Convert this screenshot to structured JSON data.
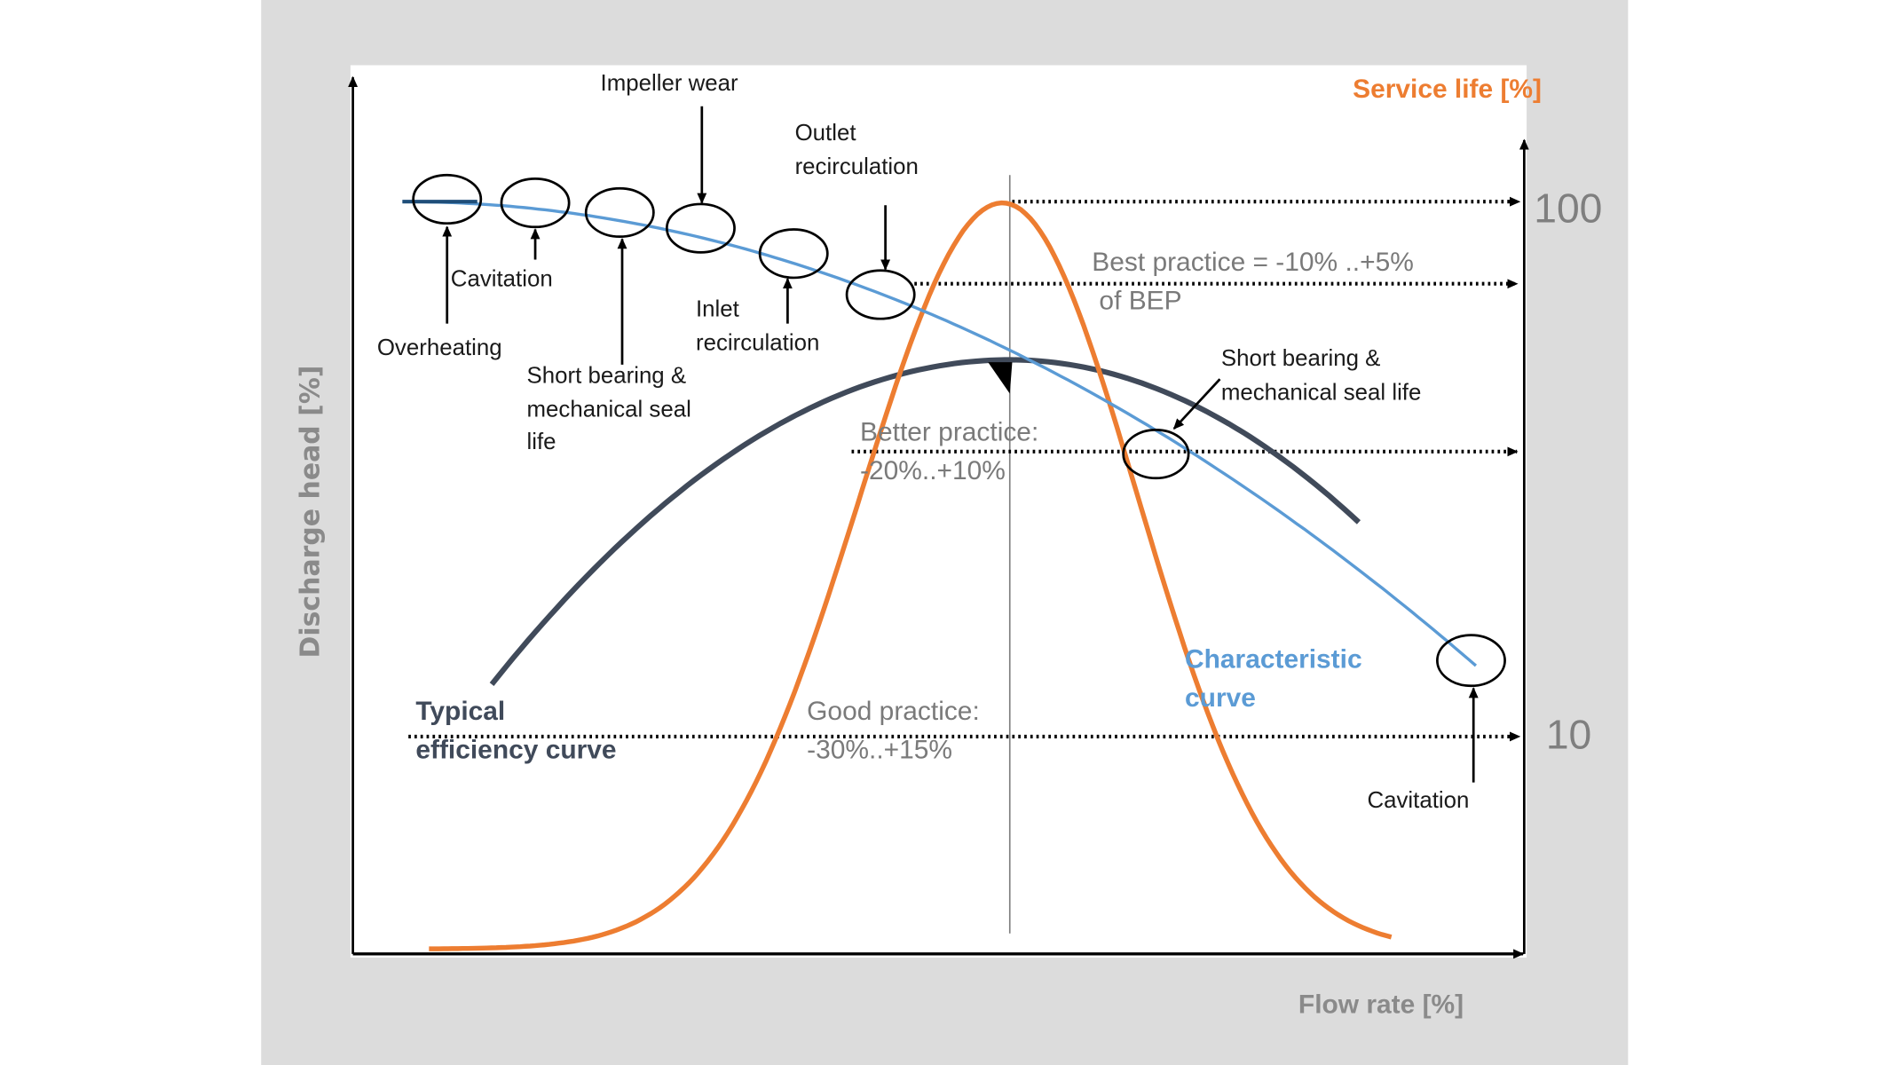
{
  "colors": {
    "service_life": "#ed7d31",
    "characteristic": "#5b9bd5",
    "efficiency": "#404a5a",
    "background": "#dcdcdc"
  },
  "axes": {
    "y_left_title": "Discharge head [%]",
    "x_title": "Flow rate [%]",
    "y_right_title": "Service life [%]",
    "y_right_ticks": [
      "100",
      "10"
    ]
  },
  "curves": {
    "efficiency_label": [
      "Typical",
      "efficiency curve"
    ],
    "characteristic_label": [
      "Characteristic",
      "curve"
    ]
  },
  "practice_bands": {
    "best": [
      "Best practice = -10% ..+5%",
      "of BEP"
    ],
    "better": [
      "Better practice:",
      "-20%..+10%"
    ],
    "good": [
      "Good practice:",
      "-30%..+15%"
    ]
  },
  "annotations": {
    "overheating": "Overheating",
    "cavitation_left": "Cavitation",
    "short_bearing_left": [
      "Short bearing &",
      "mechanical seal",
      "life"
    ],
    "impeller_wear": "Impeller wear",
    "inlet_recirculation": [
      "Inlet",
      "recirculation"
    ],
    "outlet_recirculation": [
      "Outlet",
      "recirculation"
    ],
    "short_bearing_right": [
      "Short bearing &",
      "mechanical seal life"
    ],
    "cavitation_right": "Cavitation"
  }
}
